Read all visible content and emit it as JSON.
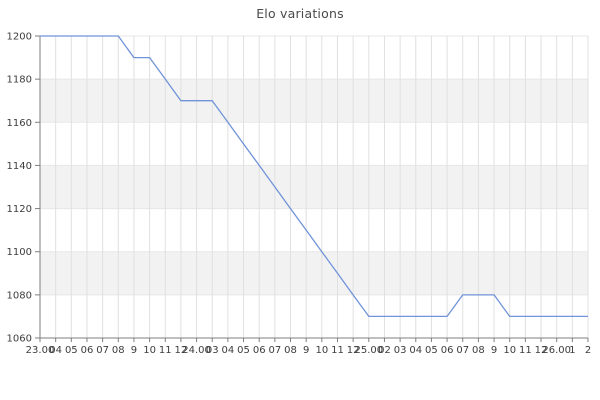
{
  "chart_data": {
    "type": "line",
    "title": "Elo variations",
    "xlabel": "",
    "ylabel": "",
    "x_labels": [
      "23.00",
      "04",
      "05",
      "06",
      "07",
      "08",
      "9",
      "10",
      "11",
      "12",
      "24.00",
      "03",
      "04",
      "05",
      "06",
      "07",
      "08",
      "9",
      "10",
      "11",
      "12",
      "25.00",
      "02",
      "03",
      "04",
      "05",
      "06",
      "07",
      "08",
      "9",
      "10",
      "11",
      "12",
      "26.00",
      "1",
      "2"
    ],
    "values": [
      1200,
      1200,
      1200,
      1200,
      1200,
      1200,
      1190,
      1190,
      1180,
      1170,
      1170,
      1170,
      1160,
      1150,
      1140,
      1130,
      1120,
      1110,
      1100,
      1090,
      1080,
      1070,
      1070,
      1070,
      1070,
      1070,
      1070,
      1080,
      1080,
      1080,
      1070,
      1070,
      1070,
      1070,
      1070,
      1070
    ],
    "y_ticks": [
      1060,
      1080,
      1100,
      1120,
      1140,
      1160,
      1180,
      1200
    ],
    "ylim": [
      1060,
      1200
    ],
    "grid": true,
    "legend_position": "none",
    "band_pattern": "alternating horizontal bands of 20 Elo, white 1200-1180 then gray 1180-1160, repeating",
    "colors": {
      "line": "#7093d9",
      "band_gray": "#f2f2f2",
      "grid_vertical": "#e0e0e0",
      "grid_horizontal": "#e7e7e7",
      "spine": "#7f7f7f",
      "tick_text": "#3d3d3d",
      "title_text": "#4a4a4a",
      "background": "#ffffff"
    }
  }
}
